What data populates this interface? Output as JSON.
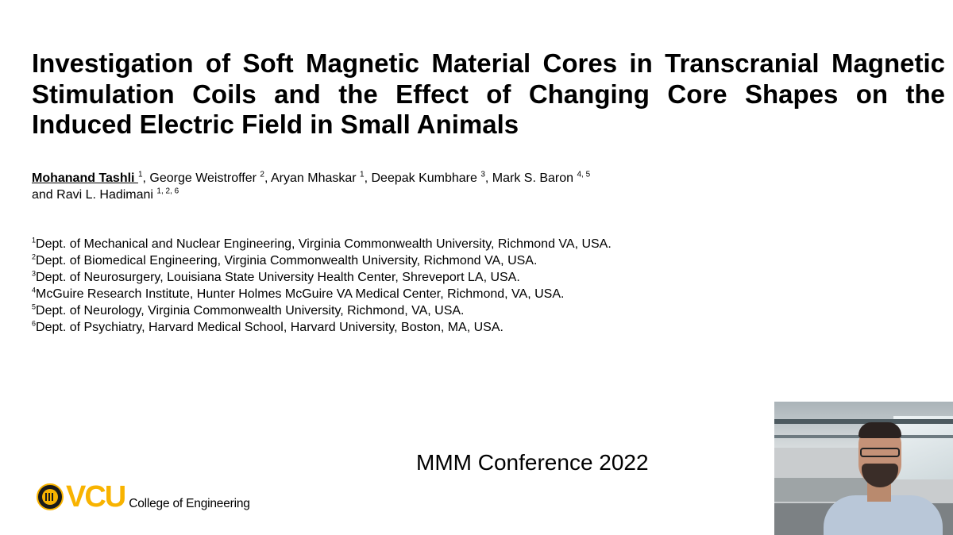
{
  "title": "Investigation of Soft Magnetic Material Cores in Transcranial Magnetic Stimulation Coils and the Effect of Changing Core Shapes on the Induced Electric Field in Small Animals",
  "authors": {
    "lead": "Mohanand Tashli ",
    "lead_sup": "1",
    "a2": ", George Weistroffer ",
    "a2_sup": "2",
    "a3": ", Aryan Mhaskar ",
    "a3_sup": "1",
    "a4": ", Deepak Kumbhare ",
    "a4_sup": "3",
    "a5": ", Mark S. Baron ",
    "a5_sup": "4, 5",
    "a6": "and Ravi L. Hadimani ",
    "a6_sup": "1, 2, 6"
  },
  "affiliations": [
    {
      "num": "1",
      "text": "Dept. of Mechanical and Nuclear Engineering, Virginia Commonwealth University, Richmond VA, USA."
    },
    {
      "num": "2",
      "text": "Dept. of Biomedical Engineering, Virginia Commonwealth University, Richmond VA, USA."
    },
    {
      "num": "3",
      "text": "Dept. of Neurosurgery, Louisiana State University Health Center, Shreveport LA, USA."
    },
    {
      "num": "4",
      "text": "McGuire Research Institute, Hunter Holmes McGuire VA Medical Center, Richmond, VA, USA."
    },
    {
      "num": "5",
      "text": "Dept. of Neurology, Virginia Commonwealth University, Richmond, VA, USA."
    },
    {
      "num": "6",
      "text": "Dept. of Psychiatry, Harvard Medical School, Harvard University, Boston, MA, USA."
    }
  ],
  "conference": "MMM Conference 2022",
  "logo": {
    "mark": "VCU",
    "unit": "College of Engineering",
    "brand_color": "#f8b300",
    "seal_icon": "university-seal-icon"
  }
}
